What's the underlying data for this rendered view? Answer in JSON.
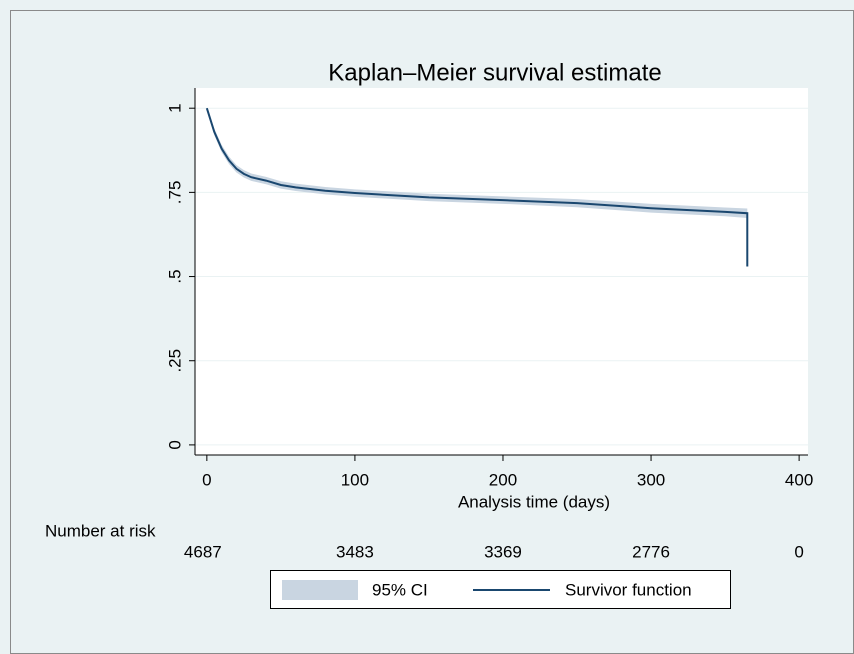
{
  "chart_data": {
    "type": "line",
    "title": "Kaplan–Meier survival estimate",
    "xlabel": "Analysis time (days)",
    "x": [
      0,
      5,
      10,
      15,
      20,
      25,
      30,
      40,
      50,
      60,
      80,
      100,
      150,
      200,
      250,
      300,
      350,
      365,
      365
    ],
    "series": [
      {
        "name": "95% CI",
        "kind": "band",
        "color": "#c9d5e1",
        "lower": [
          0.995,
          0.92,
          0.869,
          0.834,
          0.809,
          0.794,
          0.784,
          0.774,
          0.761,
          0.754,
          0.744,
          0.737,
          0.724,
          0.716,
          0.706,
          0.69,
          0.679,
          0.674,
          0.52
        ],
        "upper": [
          1,
          0.94,
          0.891,
          0.856,
          0.831,
          0.816,
          0.806,
          0.796,
          0.783,
          0.776,
          0.766,
          0.759,
          0.746,
          0.738,
          0.73,
          0.716,
          0.705,
          0.702,
          0.54
        ]
      },
      {
        "name": "Survivor function",
        "kind": "line",
        "color": "#1a476f",
        "values": [
          1,
          0.93,
          0.88,
          0.845,
          0.82,
          0.805,
          0.795,
          0.785,
          0.772,
          0.765,
          0.755,
          0.748,
          0.735,
          0.727,
          0.718,
          0.703,
          0.692,
          0.688,
          0.53
        ]
      }
    ],
    "xlim": [
      -8,
      406
    ],
    "ylim": [
      -0.03,
      1.06
    ],
    "xticks": [
      0,
      100,
      200,
      300,
      400
    ],
    "yticks": [
      0,
      {
        "value": 0.25,
        "label": ".25"
      },
      {
        "value": 0.5,
        "label": ".5"
      },
      {
        "value": 0.75,
        "label": ".75"
      },
      1
    ],
    "grid": true,
    "risk_table": {
      "label": "Number at risk",
      "values": [
        4687,
        3483,
        3369,
        2776,
        0
      ]
    }
  }
}
